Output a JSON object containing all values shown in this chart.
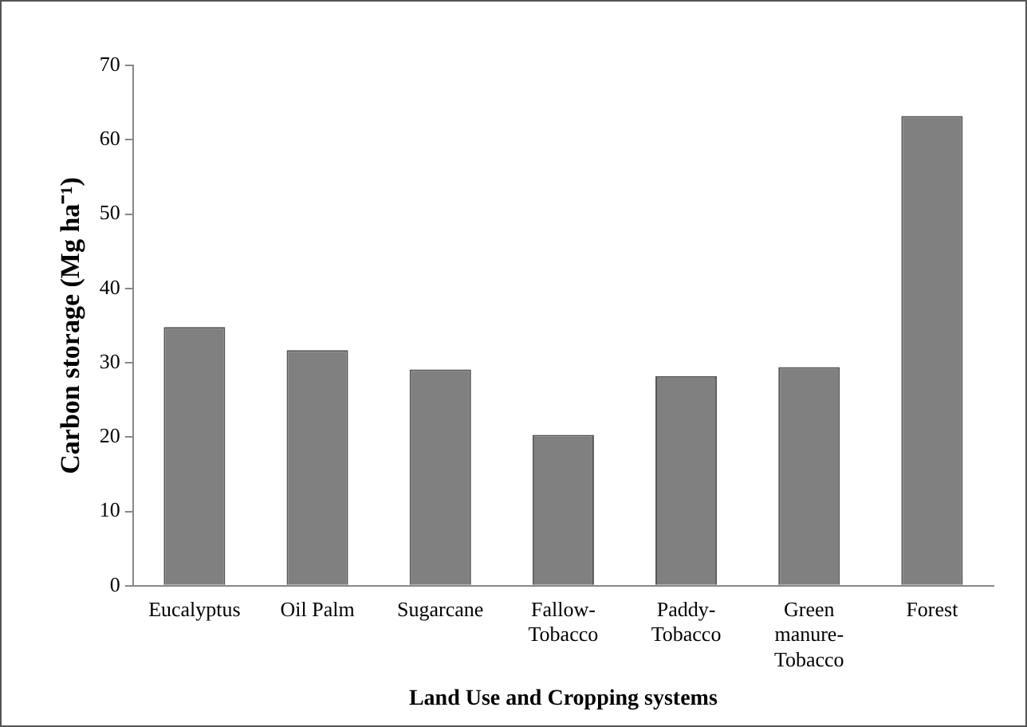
{
  "chart_data": {
    "type": "bar",
    "xlabel": "Land Use and Cropping systems",
    "ylabel": "Carbon storage (Mg ha⁻¹)",
    "categories": [
      "Eucalyptus",
      "Oil Palm",
      "Sugarcane",
      "Fallow-\nTobacco",
      "Paddy-\nTobacco",
      "Green\nmanure-\nTobacco",
      "Forest"
    ],
    "values": [
      34.8,
      31.7,
      29.1,
      20.3,
      28.2,
      29.4,
      63.2
    ],
    "color": "#808080",
    "ylim": [
      0,
      70
    ],
    "yticks": [
      0,
      10,
      20,
      30,
      40,
      50,
      60,
      70
    ],
    "grid": false,
    "legend": false
  }
}
